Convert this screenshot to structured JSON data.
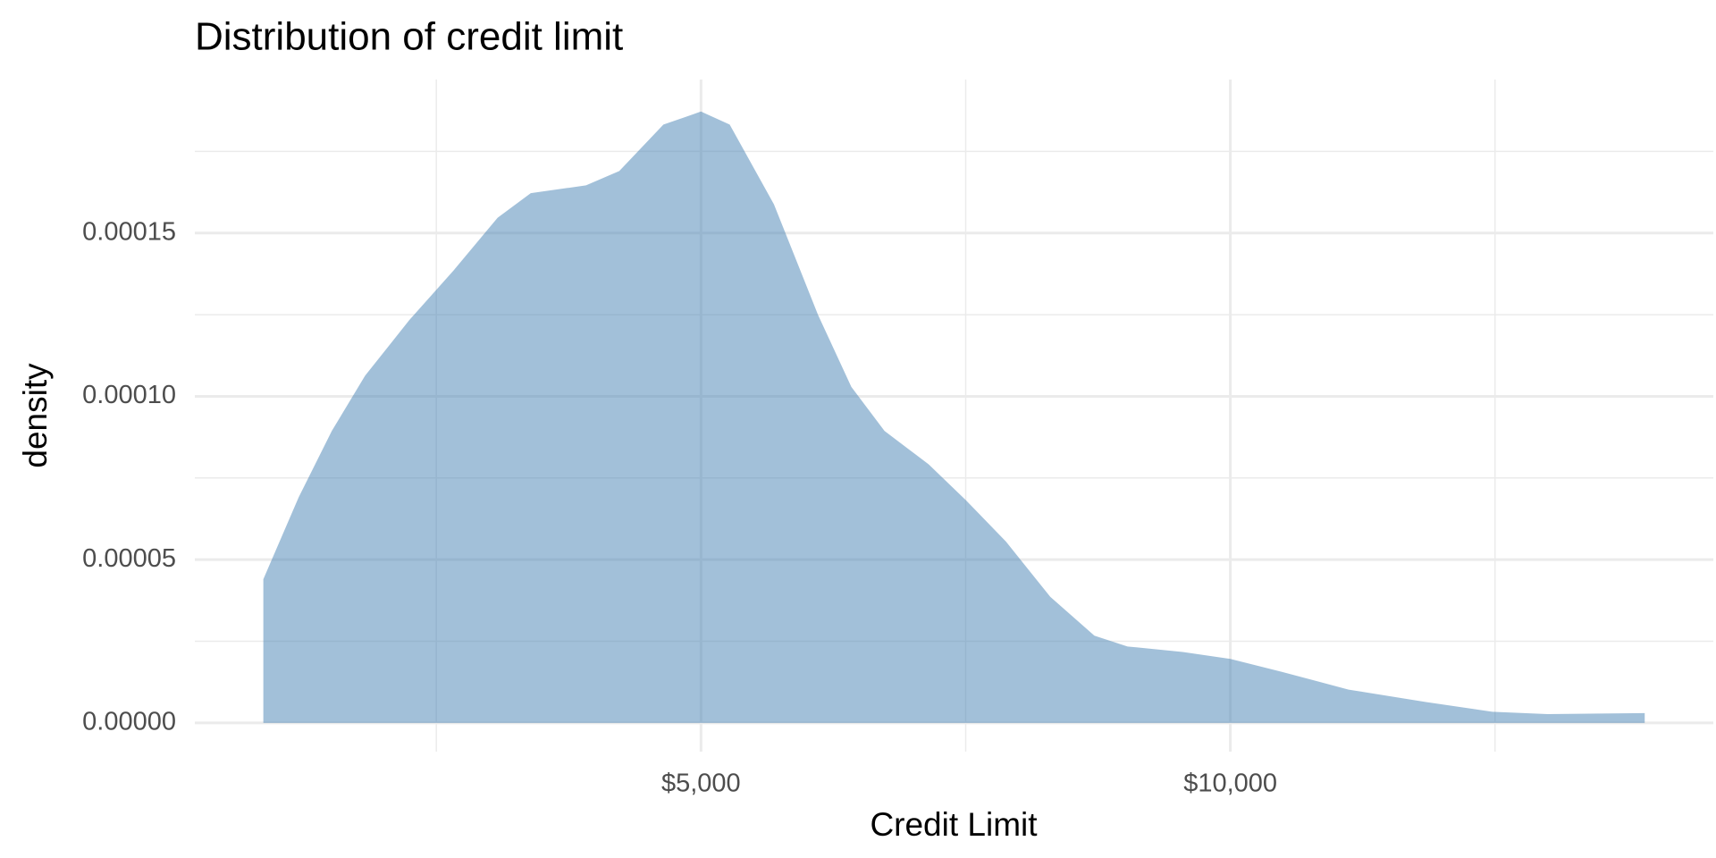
{
  "chart_data": {
    "type": "density",
    "title": "Distribution of credit limit",
    "xlabel": "Credit Limit",
    "ylabel": "density",
    "x": [
      866,
      1200,
      1513,
      1827,
      2244,
      2662,
      3079,
      3392,
      3914,
      4228,
      4645,
      5000,
      5271,
      5689,
      6106,
      6420,
      6733,
      7150,
      7505,
      7881,
      8299,
      8716,
      9029,
      9551,
      10000,
      10491,
      11117,
      11848,
      12474,
      12996,
      13914
    ],
    "y": [
      4.4e-05,
      6.91e-05,
      8.94e-05,
      0.0001063,
      0.0001233,
      0.0001385,
      0.0001547,
      0.0001622,
      0.0001646,
      0.000169,
      0.0001832,
      0.0001872,
      0.0001832,
      0.0001588,
      0.0001249,
      0.0001029,
      8.94e-05,
      7.92e-05,
      6.81e-05,
      5.55e-05,
      3.86e-05,
      2.67e-05,
      2.34e-05,
      2.17e-05,
      1.96e-05,
      1.56e-05,
      1.02e-05,
      6.4e-06,
      3.4e-06,
      2.7e-06,
      3e-06
    ],
    "color": "#4682b4",
    "alpha": 0.5,
    "xlim": [
      219,
      14562
    ],
    "ylim": [
      -8.8e-06,
      0.000197
    ],
    "xticks": [
      {
        "value": 5000,
        "label": "$5,000"
      },
      {
        "value": 10000,
        "label": "$10,000"
      }
    ],
    "yticks": [
      {
        "value": 0,
        "label": "0.00000"
      },
      5e-05,
      {
        "value": 0.0001,
        "label": "0.00010"
      },
      0.00015
    ],
    "xminorticks": [
      2500,
      7500,
      12500
    ],
    "yminorticks": [
      2.5e-05,
      7.5e-05,
      0.000125,
      0.000175
    ],
    "grid": true
  }
}
